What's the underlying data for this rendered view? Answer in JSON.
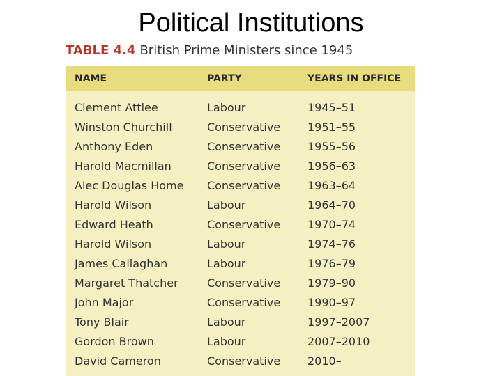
{
  "slide": {
    "title": "Political Institutions"
  },
  "table": {
    "label": "TABLE 4.4",
    "caption": "British Prime Ministers since 1945",
    "headers": [
      "NAME",
      "PARTY",
      "YEARS IN OFFICE"
    ],
    "rows": [
      [
        "Clement Attlee",
        "Labour",
        "1945–51"
      ],
      [
        "Winston Churchill",
        "Conservative",
        "1951–55"
      ],
      [
        "Anthony Eden",
        "Conservative",
        "1955–56"
      ],
      [
        "Harold Macmillan",
        "Conservative",
        "1956–63"
      ],
      [
        "Alec Douglas Home",
        "Conservative",
        "1963–64"
      ],
      [
        "Harold Wilson",
        "Labour",
        "1964–70"
      ],
      [
        "Edward Heath",
        "Conservative",
        "1970–74"
      ],
      [
        "Harold Wilson",
        "Labour",
        "1974–76"
      ],
      [
        "James Callaghan",
        "Labour",
        "1976–79"
      ],
      [
        "Margaret Thatcher",
        "Conservative",
        "1979–90"
      ],
      [
        "John Major",
        "Conservative",
        "1990–97"
      ],
      [
        "Tony Blair",
        "Labour",
        "1997–2007"
      ],
      [
        "Gordon Brown",
        "Labour",
        "2007–2010"
      ],
      [
        "David Cameron",
        "Conservative",
        "2010–"
      ]
    ]
  },
  "colors": {
    "label": "#b5362a",
    "header_bg": "#e8dc7e",
    "body_bg": "#f5f0c2"
  }
}
